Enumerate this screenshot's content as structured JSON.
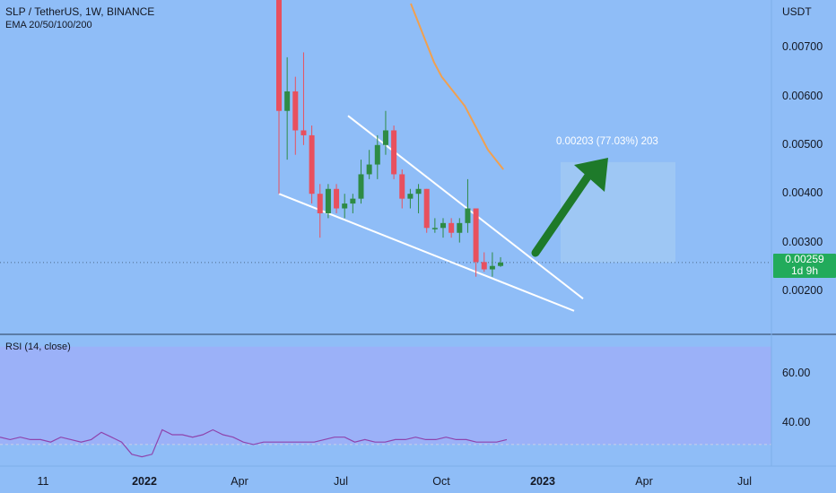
{
  "header": {
    "title": "SLP / TetherUS, 1W, BINANCE",
    "indicator": "EMA 20/50/100/200"
  },
  "price_axis": {
    "unit": "USDT",
    "ticks": [
      "0.00700",
      "0.00600",
      "0.00500",
      "0.00400",
      "0.00300",
      "0.00200"
    ]
  },
  "current_price": {
    "value": "0.00259",
    "countdown": "1d 9h",
    "color": "#22ab5b"
  },
  "projection": {
    "label": "0.00203 (77.03%) 203"
  },
  "rsi": {
    "label": "RSI (14, close)",
    "ticks": [
      "60.00",
      "40.00"
    ]
  },
  "time_axis": {
    "ticks": [
      {
        "label": "11",
        "bold": false
      },
      {
        "label": "2022",
        "bold": true
      },
      {
        "label": "Apr",
        "bold": false
      },
      {
        "label": "Jul",
        "bold": false
      },
      {
        "label": "Oct",
        "bold": false
      },
      {
        "label": "2023",
        "bold": true
      },
      {
        "label": "Apr",
        "bold": false
      },
      {
        "label": "Jul",
        "bold": false
      }
    ]
  },
  "colors": {
    "background": "#8fbdf7",
    "up": "#2e8b45",
    "down": "#e8505e",
    "ema": "#f0a050",
    "rsi_line": "#8e44ad",
    "arrow": "#1e7a2a"
  },
  "chart_data": {
    "type": "candlestick",
    "interval": "1W",
    "ylim": [
      0.0013,
      0.0081
    ],
    "candles": [
      {
        "o": 0.0082,
        "h": 0.0082,
        "l": 0.004,
        "c": 0.0057
      },
      {
        "o": 0.0057,
        "h": 0.0068,
        "l": 0.0047,
        "c": 0.0061
      },
      {
        "o": 0.0061,
        "h": 0.0064,
        "l": 0.0048,
        "c": 0.0053
      },
      {
        "o": 0.0053,
        "h": 0.0069,
        "l": 0.005,
        "c": 0.0052
      },
      {
        "o": 0.0052,
        "h": 0.0054,
        "l": 0.0038,
        "c": 0.004
      },
      {
        "o": 0.004,
        "h": 0.0042,
        "l": 0.0031,
        "c": 0.0036
      },
      {
        "o": 0.0036,
        "h": 0.0042,
        "l": 0.0035,
        "c": 0.0041
      },
      {
        "o": 0.0041,
        "h": 0.0042,
        "l": 0.0036,
        "c": 0.0037
      },
      {
        "o": 0.0037,
        "h": 0.004,
        "l": 0.0035,
        "c": 0.0038
      },
      {
        "o": 0.0038,
        "h": 0.004,
        "l": 0.0036,
        "c": 0.0039
      },
      {
        "o": 0.0039,
        "h": 0.0047,
        "l": 0.0038,
        "c": 0.0044
      },
      {
        "o": 0.0044,
        "h": 0.0049,
        "l": 0.0043,
        "c": 0.0046
      },
      {
        "o": 0.0046,
        "h": 0.0052,
        "l": 0.0043,
        "c": 0.005
      },
      {
        "o": 0.005,
        "h": 0.0057,
        "l": 0.0048,
        "c": 0.0053
      },
      {
        "o": 0.0053,
        "h": 0.0054,
        "l": 0.0043,
        "c": 0.0044
      },
      {
        "o": 0.0044,
        "h": 0.0045,
        "l": 0.0037,
        "c": 0.0039
      },
      {
        "o": 0.0039,
        "h": 0.0041,
        "l": 0.0037,
        "c": 0.004
      },
      {
        "o": 0.004,
        "h": 0.0042,
        "l": 0.0036,
        "c": 0.0041
      },
      {
        "o": 0.0041,
        "h": 0.0041,
        "l": 0.0032,
        "c": 0.0033
      },
      {
        "o": 0.0033,
        "h": 0.0035,
        "l": 0.0032,
        "c": 0.0033
      },
      {
        "o": 0.0033,
        "h": 0.0035,
        "l": 0.0031,
        "c": 0.0034
      },
      {
        "o": 0.0034,
        "h": 0.0035,
        "l": 0.0031,
        "c": 0.0032
      },
      {
        "o": 0.0032,
        "h": 0.0035,
        "l": 0.003,
        "c": 0.0034
      },
      {
        "o": 0.0034,
        "h": 0.0043,
        "l": 0.0032,
        "c": 0.0037
      },
      {
        "o": 0.0037,
        "h": 0.0037,
        "l": 0.0023,
        "c": 0.0026
      },
      {
        "o": 0.0026,
        "h": 0.0028,
        "l": 0.0024,
        "c": 0.00245
      },
      {
        "o": 0.00245,
        "h": 0.0028,
        "l": 0.0023,
        "c": 0.00252
      },
      {
        "o": 0.00252,
        "h": 0.0027,
        "l": 0.0025,
        "c": 0.00259
      }
    ],
    "ema": [
      0.0079,
      0.0075,
      0.0071,
      0.0067,
      0.0064,
      0.0062,
      0.006,
      0.0058,
      0.0055,
      0.0052,
      0.0049,
      0.0047,
      0.0045
    ],
    "rsi": [
      33,
      32,
      33,
      32,
      32,
      31,
      33,
      32,
      31,
      32,
      35,
      33,
      31,
      26,
      25,
      26,
      36,
      34,
      34,
      33,
      34,
      36,
      34,
      33,
      31,
      30,
      31,
      31,
      31,
      31,
      31,
      31,
      32,
      33,
      33,
      31,
      32,
      31,
      31,
      32,
      32,
      33,
      32,
      32,
      33,
      32,
      32,
      31,
      31,
      31,
      32
    ],
    "rsi_ylim": [
      22,
      70
    ]
  }
}
